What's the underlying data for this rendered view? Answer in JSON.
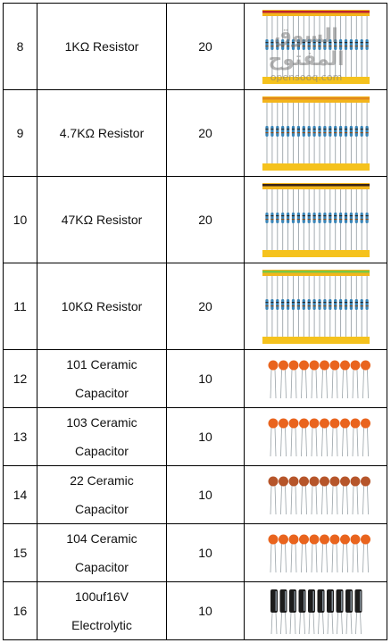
{
  "rows": [
    {
      "no": "8",
      "name": [
        "1KΩ  Resistor"
      ],
      "qty": "20",
      "image": {
        "kind": "resistor-strip",
        "band": "#c0262c",
        "top": "#f3b51c"
      }
    },
    {
      "no": "9",
      "name": [
        "4.7KΩ  Resistor"
      ],
      "qty": "20",
      "image": {
        "kind": "resistor-strip",
        "band": "#e0891c",
        "top": "#f3b51c"
      }
    },
    {
      "no": "10",
      "name": [
        "47KΩ  Resistor"
      ],
      "qty": "20",
      "image": {
        "kind": "resistor-strip",
        "band": "#3a2414",
        "top": "#f3b51c"
      }
    },
    {
      "no": "11",
      "name": [
        "10KΩ  Resistor"
      ],
      "qty": "20",
      "image": {
        "kind": "resistor-strip",
        "band": "#7bc843",
        "top": "#f3b51c"
      }
    },
    {
      "no": "12",
      "name": [
        "101 Ceramic",
        "Capacitor"
      ],
      "qty": "10",
      "image": {
        "kind": "ceramic-capacitors",
        "color": "#e9641e"
      }
    },
    {
      "no": "13",
      "name": [
        "103 Ceramic",
        "Capacitor"
      ],
      "qty": "10",
      "image": {
        "kind": "ceramic-capacitors",
        "color": "#e9641e"
      }
    },
    {
      "no": "14",
      "name": [
        "22 Ceramic",
        "Capacitor"
      ],
      "qty": "10",
      "image": {
        "kind": "ceramic-capacitors",
        "color": "#b6552a"
      }
    },
    {
      "no": "15",
      "name": [
        "104 Ceramic",
        "Capacitor"
      ],
      "qty": "10",
      "image": {
        "kind": "ceramic-capacitors",
        "color": "#e9641e"
      }
    },
    {
      "no": "16",
      "name": [
        "100uf16V",
        "Electrolytic"
      ],
      "qty": "10",
      "image": {
        "kind": "electrolytic-capacitors",
        "color": "#1c1c1c"
      }
    }
  ],
  "watermark": {
    "arabic": "السوق المفتوح",
    "latin": "opensooq.com"
  }
}
